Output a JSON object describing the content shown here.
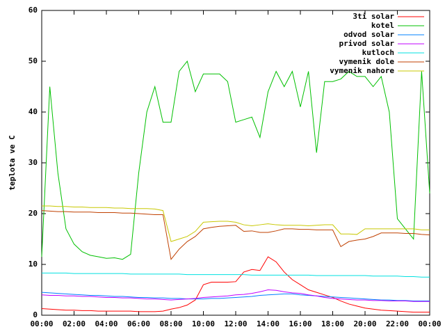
{
  "chart_data": {
    "type": "line",
    "y_label": "teplota ve C",
    "x": [
      0,
      0.5,
      1,
      1.5,
      2,
      2.5,
      3,
      3.5,
      4,
      4.5,
      5,
      5.5,
      6,
      6.5,
      7,
      7.5,
      8,
      8.5,
      9,
      9.5,
      10,
      10.5,
      11,
      11.5,
      12,
      12.5,
      13,
      13.5,
      14,
      14.5,
      15,
      15.5,
      16,
      16.5,
      17,
      17.5,
      18,
      18.5,
      19,
      19.5,
      20,
      20.5,
      21,
      21.5,
      22,
      22.5,
      23,
      23.5,
      24
    ],
    "xlim": [
      0,
      24
    ],
    "xticks": [
      {
        "value": 0,
        "label": "00:00"
      },
      {
        "value": 2,
        "label": "02:00"
      },
      {
        "value": 4,
        "label": "04:00"
      },
      {
        "value": 6,
        "label": "06:00"
      },
      {
        "value": 8,
        "label": "08:00"
      },
      {
        "value": 10,
        "label": "10:00"
      },
      {
        "value": 12,
        "label": "12:00"
      },
      {
        "value": 14,
        "label": "14:00"
      },
      {
        "value": 16,
        "label": "16:00"
      },
      {
        "value": 18,
        "label": "18:00"
      },
      {
        "value": 20,
        "label": "20:00"
      },
      {
        "value": 22,
        "label": "22:00"
      },
      {
        "value": 24,
        "label": "00:00"
      }
    ],
    "ylim": [
      0,
      60
    ],
    "yticks": [
      0,
      10,
      20,
      30,
      40,
      50,
      60
    ],
    "legend": "top-right",
    "series": [
      {
        "name": "3ti solar",
        "color": "#ff0000",
        "values": [
          1.3,
          1.2,
          1.1,
          1.0,
          1.0,
          0.9,
          0.9,
          0.8,
          0.8,
          0.8,
          0.8,
          0.8,
          0.7,
          0.7,
          0.7,
          0.8,
          1.2,
          1.5,
          2.0,
          3.0,
          6.0,
          6.5,
          6.5,
          6.5,
          6.6,
          8.5,
          9.0,
          8.8,
          11.5,
          10.5,
          8.5,
          7.0,
          6.0,
          5.0,
          4.5,
          4.0,
          3.5,
          2.8,
          2.2,
          1.8,
          1.4,
          1.2,
          1.0,
          0.9,
          0.8,
          0.7,
          0.6,
          0.6,
          0.6
        ]
      },
      {
        "name": "kotel",
        "color": "#00c000",
        "values": [
          11.5,
          45,
          28,
          17,
          14,
          12.5,
          11.8,
          11.5,
          11.2,
          11.3,
          11,
          12,
          28,
          40,
          45,
          38,
          38,
          48,
          50,
          44,
          47.5,
          47.5,
          47.5,
          46,
          38,
          38.5,
          39,
          35,
          44,
          48,
          45,
          48,
          41,
          48,
          32,
          46,
          46,
          46.5,
          48,
          47,
          47,
          45,
          47,
          40,
          19,
          17,
          15,
          48,
          24
        ]
      },
      {
        "name": "odvod solar",
        "color": "#0080ff",
        "values": [
          4.5,
          4.4,
          4.3,
          4.2,
          4.1,
          4.0,
          3.9,
          3.9,
          3.8,
          3.7,
          3.7,
          3.6,
          3.5,
          3.5,
          3.4,
          3.4,
          3.3,
          3.3,
          3.2,
          3.2,
          3.2,
          3.3,
          3.3,
          3.4,
          3.5,
          3.6,
          3.7,
          3.9,
          4.0,
          4.1,
          4.2,
          4.2,
          4.0,
          3.9,
          3.8,
          3.7,
          3.6,
          3.5,
          3.4,
          3.3,
          3.2,
          3.1,
          3.0,
          3.0,
          2.9,
          2.9,
          2.8,
          2.8,
          2.8
        ]
      },
      {
        "name": "privod solar",
        "color": "#c000ff",
        "values": [
          4.0,
          3.9,
          3.9,
          3.8,
          3.8,
          3.7,
          3.7,
          3.6,
          3.5,
          3.5,
          3.4,
          3.4,
          3.3,
          3.2,
          3.2,
          3.1,
          3.0,
          3.1,
          3.2,
          3.3,
          3.5,
          3.6,
          3.7,
          3.8,
          4.0,
          4.1,
          4.3,
          4.6,
          5.0,
          4.9,
          4.6,
          4.4,
          4.3,
          4.0,
          3.8,
          3.5,
          3.3,
          3.2,
          3.1,
          3.0,
          3.0,
          2.9,
          2.9,
          2.8,
          2.8,
          2.8,
          2.7,
          2.7,
          2.7
        ]
      },
      {
        "name": "kutloch",
        "color": "#00e0e0",
        "values": [
          8.3,
          8.3,
          8.3,
          8.3,
          8.2,
          8.2,
          8.2,
          8.2,
          8.2,
          8.2,
          8.2,
          8.1,
          8.1,
          8.1,
          8.1,
          8.1,
          8.1,
          8.1,
          8.0,
          8.0,
          8.0,
          8.0,
          8.0,
          8.0,
          8.0,
          8.0,
          7.9,
          7.9,
          7.9,
          7.9,
          7.9,
          7.9,
          7.9,
          7.9,
          7.8,
          7.8,
          7.8,
          7.8,
          7.8,
          7.8,
          7.8,
          7.7,
          7.7,
          7.7,
          7.7,
          7.6,
          7.6,
          7.5,
          7.5
        ]
      },
      {
        "name": "vymenik dole",
        "color": "#c04000",
        "values": [
          20.6,
          20.5,
          20.4,
          20.4,
          20.3,
          20.3,
          20.3,
          20.2,
          20.2,
          20.2,
          20.1,
          20.1,
          20.0,
          19.9,
          19.8,
          19.8,
          11.0,
          13.0,
          14.5,
          15.5,
          17.0,
          17.3,
          17.5,
          17.6,
          17.7,
          16.5,
          16.6,
          16.3,
          16.3,
          16.6,
          17.0,
          17.0,
          16.9,
          16.9,
          16.8,
          16.8,
          16.8,
          13.5,
          14.5,
          14.8,
          15.0,
          15.5,
          16.2,
          16.2,
          16.2,
          16.1,
          16.1,
          15.9,
          15.8
        ]
      },
      {
        "name": "vymenik nahore",
        "color": "#c8c800",
        "values": [
          21.5,
          21.5,
          21.4,
          21.4,
          21.3,
          21.3,
          21.2,
          21.2,
          21.2,
          21.1,
          21.1,
          21.0,
          21.0,
          21.0,
          20.9,
          20.6,
          14.5,
          15.0,
          15.5,
          16.5,
          18.3,
          18.4,
          18.5,
          18.5,
          18.3,
          17.8,
          17.6,
          17.8,
          18.0,
          17.8,
          17.7,
          17.7,
          17.7,
          17.6,
          17.7,
          17.8,
          17.8,
          16.0,
          16.0,
          15.9,
          17.0,
          17.0,
          17.0,
          17.0,
          17.0,
          17.0,
          17.0,
          16.8,
          16.8
        ]
      }
    ]
  }
}
